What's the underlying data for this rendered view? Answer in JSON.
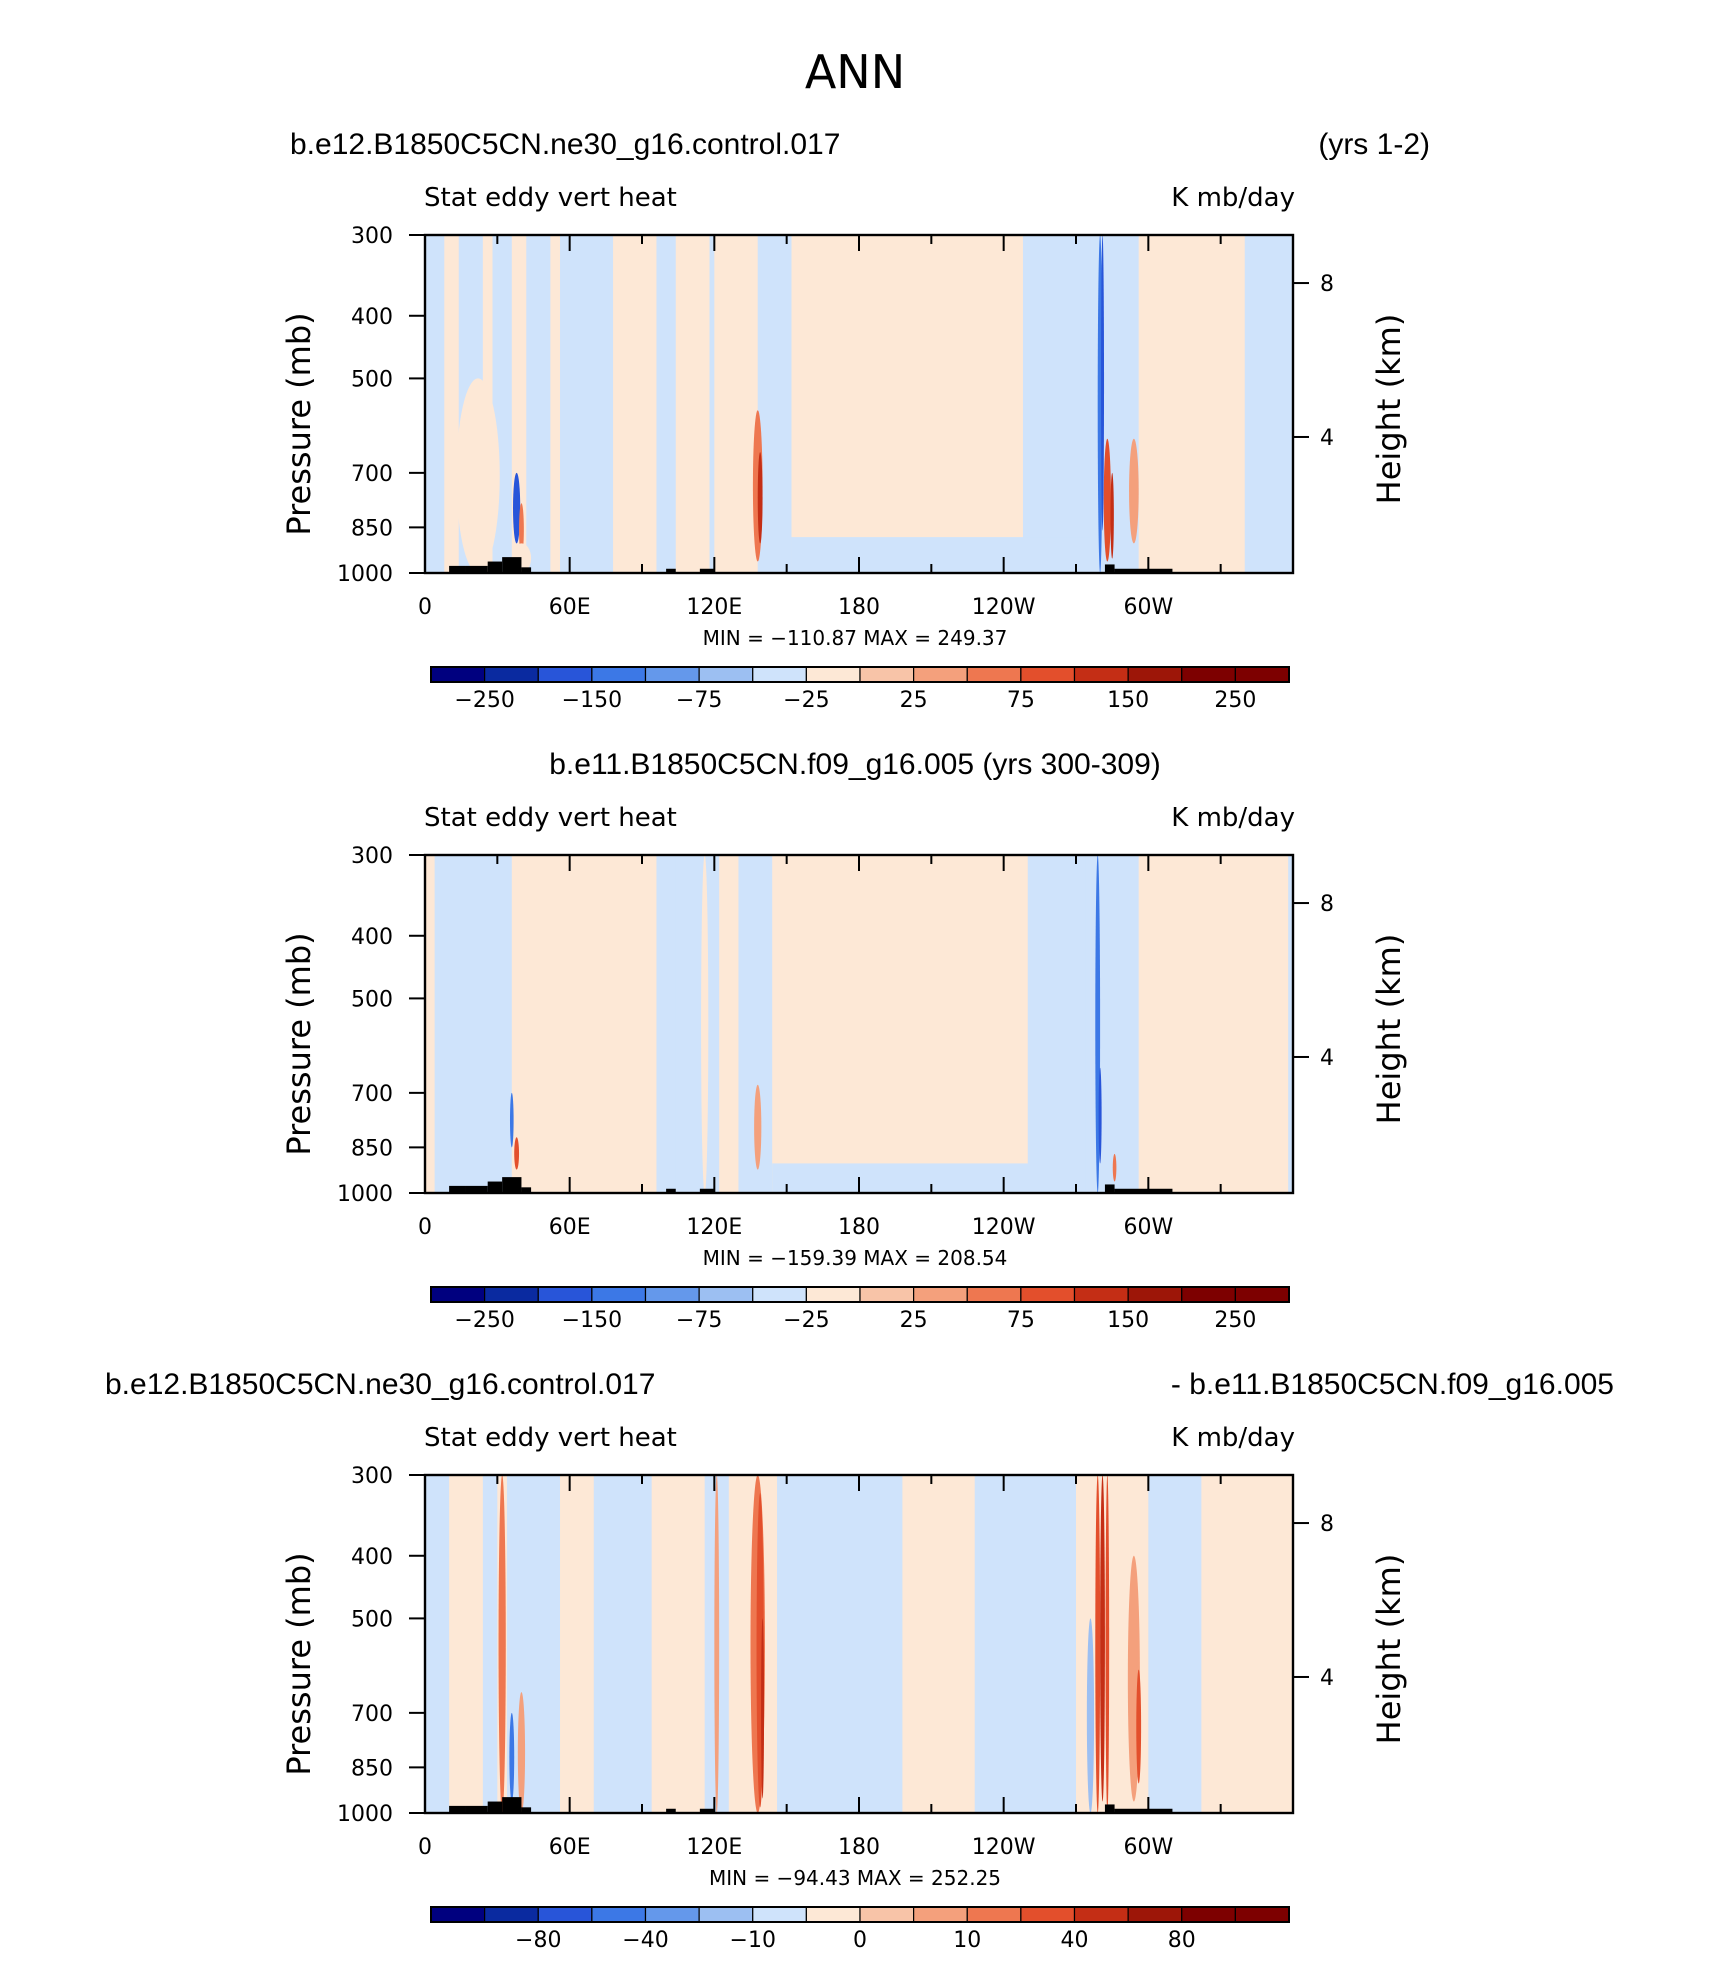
{
  "figure_title": "ANN",
  "panels": [
    {
      "header_left": "b.e12.B1850C5CN.ne30_g16.control.017",
      "header_right": "(yrs 1-2)",
      "header_center": "",
      "var_label": "Stat eddy vert heat",
      "units_label": "K mb/day",
      "minmax": "MIN = −110.87   MAX = 249.37"
    },
    {
      "header_left": "",
      "header_right": "",
      "header_center": "b.e11.B1850C5CN.f09_g16.005 (yrs 300-309)",
      "var_label": "Stat eddy vert heat",
      "units_label": "K mb/day",
      "minmax": "MIN = −159.39   MAX = 208.54"
    },
    {
      "header_left": "b.e12.B1850C5CN.ne30_g16.control.017",
      "header_right": "- b.e11.B1850C5CN.f09_g16.005",
      "header_center": "",
      "var_label": "Stat eddy vert heat",
      "units_label": "K mb/day",
      "minmax": "MIN = −94.43   MAX = 252.25"
    }
  ],
  "chart_data": [
    {
      "type": "heatmap",
      "title": "Stat eddy vert heat",
      "units": "K mb/day",
      "xlabel": "",
      "ylabel": "Pressure (mb)",
      "y2label": "Height (km)",
      "x_ticks": [
        "0",
        "60E",
        "120E",
        "180",
        "120W",
        "60W"
      ],
      "x_range": [
        0,
        360
      ],
      "y_ticks": [
        "300",
        "400",
        "500",
        "700",
        "850",
        "1000"
      ],
      "y_range_mb": [
        1000,
        300
      ],
      "y2_ticks": [
        "8",
        "4"
      ],
      "min": -110.87,
      "max": 249.37,
      "colorbar_labels": [
        "−250",
        "−150",
        "−75",
        "−25",
        "25",
        "75",
        "150",
        "250"
      ],
      "features": [
        {
          "lon": 38,
          "p_top": 700,
          "value": -100
        },
        {
          "lon": 138,
          "p_top": 600,
          "value": 150
        },
        {
          "lon": 280,
          "p_top": 300,
          "value": -110
        },
        {
          "lon": 283,
          "p_top": 650,
          "value": 200
        }
      ]
    },
    {
      "type": "heatmap",
      "title": "Stat eddy vert heat",
      "units": "K mb/day",
      "xlabel": "",
      "ylabel": "Pressure (mb)",
      "y2label": "Height (km)",
      "x_ticks": [
        "0",
        "60E",
        "120E",
        "180",
        "120W",
        "60W"
      ],
      "x_range": [
        0,
        360
      ],
      "y_ticks": [
        "300",
        "400",
        "500",
        "700",
        "850",
        "1000"
      ],
      "y_range_mb": [
        1000,
        300
      ],
      "y2_ticks": [
        "8",
        "4"
      ],
      "min": -159.39,
      "max": 208.54,
      "colorbar_labels": [
        "−250",
        "−150",
        "−75",
        "−25",
        "25",
        "75",
        "150",
        "250"
      ],
      "features": [
        {
          "lon": 38,
          "p_top": 800,
          "value": 120
        },
        {
          "lon": 138,
          "p_top": 700,
          "value": 70
        },
        {
          "lon": 280,
          "p_top": 300,
          "value": -159
        }
      ]
    },
    {
      "type": "heatmap",
      "title": "Stat eddy vert heat",
      "units": "K mb/day",
      "xlabel": "",
      "ylabel": "Pressure (mb)",
      "y2label": "Height (km)",
      "x_ticks": [
        "0",
        "60E",
        "120E",
        "180",
        "120W",
        "60W"
      ],
      "x_range": [
        0,
        360
      ],
      "y_ticks": [
        "300",
        "400",
        "500",
        "700",
        "850",
        "1000"
      ],
      "y_range_mb": [
        1000,
        300
      ],
      "y2_ticks": [
        "8",
        "4"
      ],
      "min": -94.43,
      "max": 252.25,
      "colorbar_labels": [
        "−80",
        "−40",
        "−10",
        "0",
        "10",
        "40",
        "80"
      ],
      "features": [
        {
          "lon": 32,
          "p_top": 300,
          "value": 80
        },
        {
          "lon": 138,
          "p_top": 300,
          "value": 100
        },
        {
          "lon": 281,
          "p_top": 300,
          "value": 252
        }
      ]
    }
  ],
  "colors": {
    "neg": [
      "#00007f",
      "#0a2aa0",
      "#2855d9",
      "#3c78e6",
      "#6498eb",
      "#9cbff2",
      "#cfe3fb"
    ],
    "pos": [
      "#fde8d6",
      "#f8c4a8",
      "#f4a07c",
      "#ee7750",
      "#e34f2c",
      "#c42e15",
      "#9d1608",
      "#7d0000"
    ],
    "terrain": "#000000"
  }
}
